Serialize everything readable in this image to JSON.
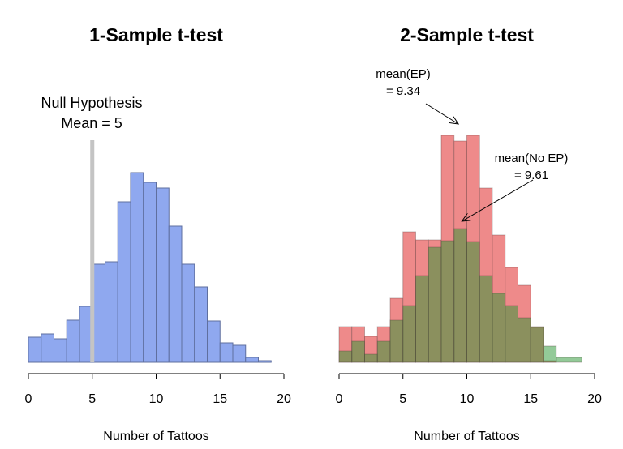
{
  "chart_data": [
    {
      "type": "histogram",
      "title": "1-Sample t-test",
      "xlabel": "Number of Tattoos",
      "bins": [
        0,
        1,
        2,
        3,
        4,
        5,
        6,
        7,
        8,
        9,
        10,
        11,
        12,
        13,
        14,
        15,
        16,
        17,
        18,
        19
      ],
      "series": [
        {
          "color": "#8fa8ef",
          "values": [
            31,
            35,
            29,
            52,
            69,
            121,
            124,
            198,
            234,
            222,
            215,
            168,
            121,
            93,
            51,
            24,
            21,
            6,
            2
          ]
        }
      ],
      "xlim": [
        0,
        20
      ],
      "xticks": [
        0,
        5,
        10,
        15,
        20
      ],
      "ylim": [
        0,
        300
      ],
      "reference_line": {
        "value": 5,
        "color": "#c4c4c4",
        "lines": [
          "Null Hypothesis",
          "Mean = 5"
        ]
      }
    },
    {
      "type": "histogram",
      "title": "2-Sample t-test",
      "xlabel": "Number of Tattoos",
      "bins": [
        0,
        1,
        2,
        3,
        4,
        5,
        6,
        7,
        8,
        9,
        10,
        11,
        12,
        13,
        14,
        15,
        16,
        17,
        18,
        19
      ],
      "series": [
        {
          "color": "#ee8a8a",
          "values": [
            44,
            44,
            32,
            44,
            79,
            161,
            151,
            151,
            280,
            273,
            280,
            215,
            157,
            117,
            95,
            44,
            2,
            0,
            0
          ]
        },
        {
          "color": "rgba(40,150,50,0.5)",
          "values": [
            14,
            26,
            10,
            26,
            52,
            70,
            107,
            142,
            150,
            165,
            149,
            107,
            85,
            70,
            55,
            43,
            20,
            6,
            6
          ]
        }
      ],
      "xlim": [
        0,
        20
      ],
      "xticks": [
        0,
        5,
        10,
        15,
        20
      ],
      "ylim": [
        0,
        300
      ],
      "annotations": [
        {
          "value": 9.34,
          "lines": [
            "mean(EP)",
            "= 9.34"
          ]
        },
        {
          "value": 9.61,
          "lines": [
            "mean(No EP)",
            "= 9.61"
          ]
        }
      ]
    }
  ]
}
